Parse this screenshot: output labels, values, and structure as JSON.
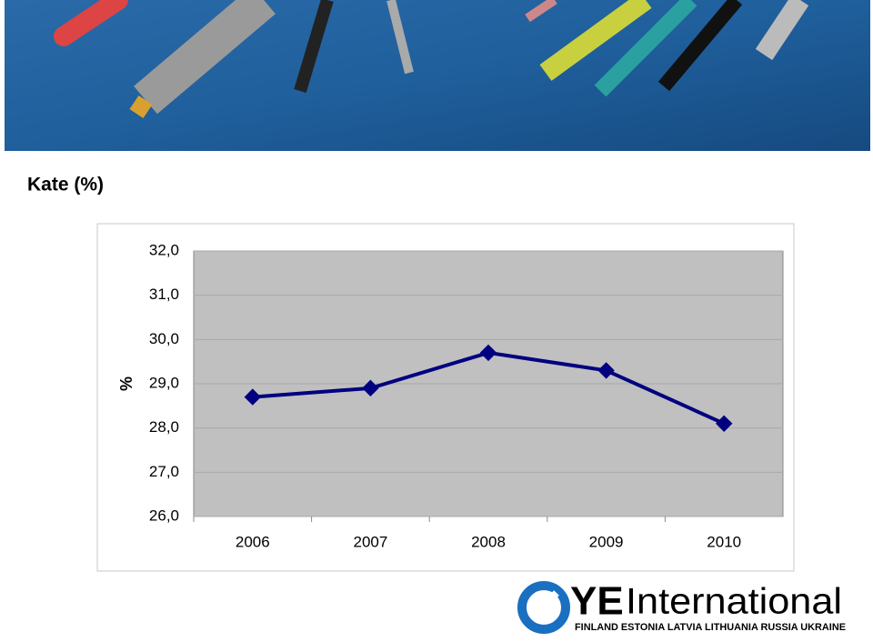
{
  "chart_data": {
    "type": "line",
    "title": "Kate (%)",
    "y_label": "%",
    "categories": [
      "2006",
      "2007",
      "2008",
      "2009",
      "2010"
    ],
    "values": [
      28.7,
      28.9,
      29.7,
      29.3,
      28.1
    ],
    "color": "#000080",
    "ylim": [
      26,
      32
    ],
    "yticks": [
      {
        "value": 26,
        "label": "26,0"
      },
      {
        "value": 27,
        "label": "27,0"
      },
      {
        "value": 28,
        "label": "28,0"
      },
      {
        "value": 29,
        "label": "29,0"
      },
      {
        "value": 30,
        "label": "30,0"
      },
      {
        "value": 31,
        "label": "31,0"
      },
      {
        "value": 32,
        "label": "32,0"
      }
    ],
    "grid": true
  },
  "logo": {
    "brand_bold": "YE",
    "brand_light": "International",
    "countries": "FINLAND ESTONIA LATVIA LITHUANIA RUSSIA UKRAINE"
  }
}
